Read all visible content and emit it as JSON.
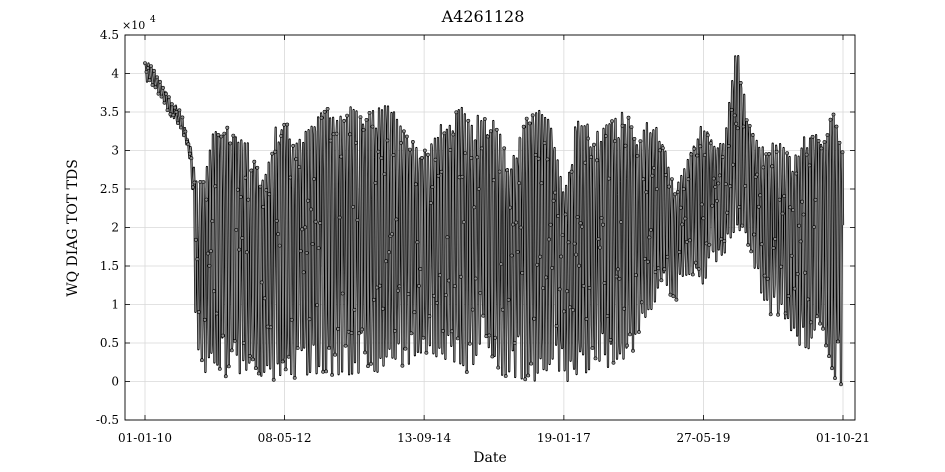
{
  "chart_data": {
    "type": "scatter",
    "title": "A4261128",
    "xlabel": "Date",
    "ylabel": "WQ DIAG TOT TDS",
    "y_multiplier_label": "×10",
    "y_multiplier_exponent": "4",
    "ylim": [
      -0.5,
      4.5
    ],
    "yticks": [
      "-0.5",
      "0",
      "0.5",
      "1",
      "1.5",
      "2",
      "2.5",
      "3",
      "3.5",
      "4",
      "4.5"
    ],
    "ytick_values": [
      -0.5,
      0,
      0.5,
      1,
      1.5,
      2,
      2.5,
      3,
      3.5,
      4,
      4.5
    ],
    "xticks": [
      "01-01-10",
      "08-05-12",
      "13-09-14",
      "19-01-17",
      "27-05-19",
      "01-10-21"
    ],
    "xlim": [
      "2010-01-01",
      "2021-10-01"
    ],
    "grid": true,
    "series_colors": {
      "marker_edge": "#000000",
      "marker_fill": "#8c8c8c"
    },
    "envelope": {
      "x": [
        "2010-01-01",
        "2010-03-01",
        "2010-06-01",
        "2010-08-15",
        "2010-10-15",
        "2010-11-10",
        "2011-01-01",
        "2011-02-15",
        "2011-06-01",
        "2011-08-01",
        "2011-10-01",
        "2012-01-01",
        "2012-03-01",
        "2012-05-08",
        "2012-08-01",
        "2012-10-01",
        "2012-12-01",
        "2013-03-01",
        "2013-05-01",
        "2013-07-01",
        "2013-09-01",
        "2013-11-01",
        "2014-01-01",
        "2014-03-01",
        "2014-05-01",
        "2014-07-01",
        "2014-09-13",
        "2014-11-01",
        "2015-01-01",
        "2015-03-01",
        "2015-05-01",
        "2015-07-01",
        "2015-09-01",
        "2015-11-01",
        "2016-01-01",
        "2016-03-01",
        "2016-05-01",
        "2016-07-01",
        "2016-09-01",
        "2016-11-01",
        "2017-01-19",
        "2017-04-01",
        "2017-06-01",
        "2017-08-01",
        "2017-10-01",
        "2017-12-01",
        "2018-02-01",
        "2018-04-01",
        "2018-06-01",
        "2018-08-01",
        "2018-10-01",
        "2018-12-01",
        "2019-02-01",
        "2019-05-27",
        "2019-08-01",
        "2019-10-01",
        "2019-12-15",
        "2020-03-01",
        "2020-06-01",
        "2020-09-01",
        "2020-12-01",
        "2021-03-01",
        "2021-06-01",
        "2021-08-01",
        "2021-10-01"
      ],
      "upper": [
        41.5,
        40.5,
        36.5,
        34.5,
        30.0,
        26.0,
        26.0,
        32.0,
        33.0,
        31.5,
        31.0,
        26.0,
        32.5,
        33.5,
        31.0,
        33.0,
        35.5,
        35.0,
        34.5,
        35.5,
        34.0,
        35.5,
        35.5,
        35.5,
        32.5,
        31.0,
        30.0,
        31.0,
        34.0,
        35.0,
        35.5,
        34.5,
        34.0,
        35.0,
        32.0,
        28.0,
        33.0,
        35.0,
        35.0,
        33.5,
        24.0,
        33.5,
        33.5,
        32.0,
        33.0,
        35.0,
        35.0,
        32.0,
        33.5,
        34.0,
        30.0,
        25.0,
        28.0,
        33.5,
        31.0,
        30.5,
        44.0,
        33.5,
        30.0,
        31.0,
        28.5,
        33.0,
        31.0,
        35.0,
        30.0
      ],
      "lower": [
        39.0,
        38.5,
        35.0,
        32.5,
        28.0,
        5.0,
        0.5,
        0.5,
        0.5,
        0.5,
        0.5,
        0.5,
        0.5,
        0.5,
        0.5,
        0.5,
        1.0,
        0.8,
        0.8,
        1.0,
        1.2,
        1.5,
        1.5,
        2.5,
        2.0,
        3.0,
        4.0,
        3.5,
        3.0,
        2.0,
        1.5,
        1.0,
        5.0,
        3.0,
        0.5,
        0.3,
        0.3,
        0.5,
        0.5,
        2.0,
        0.5,
        0.3,
        0.5,
        1.0,
        2.0,
        1.0,
        0.5,
        5.0,
        8.0,
        10.0,
        12.0,
        10.0,
        14.0,
        12.0,
        15.0,
        16.0,
        20.0,
        18.0,
        10.0,
        8.0,
        6.0,
        2.0,
        5.0,
        0.5,
        -0.3
      ]
    }
  }
}
